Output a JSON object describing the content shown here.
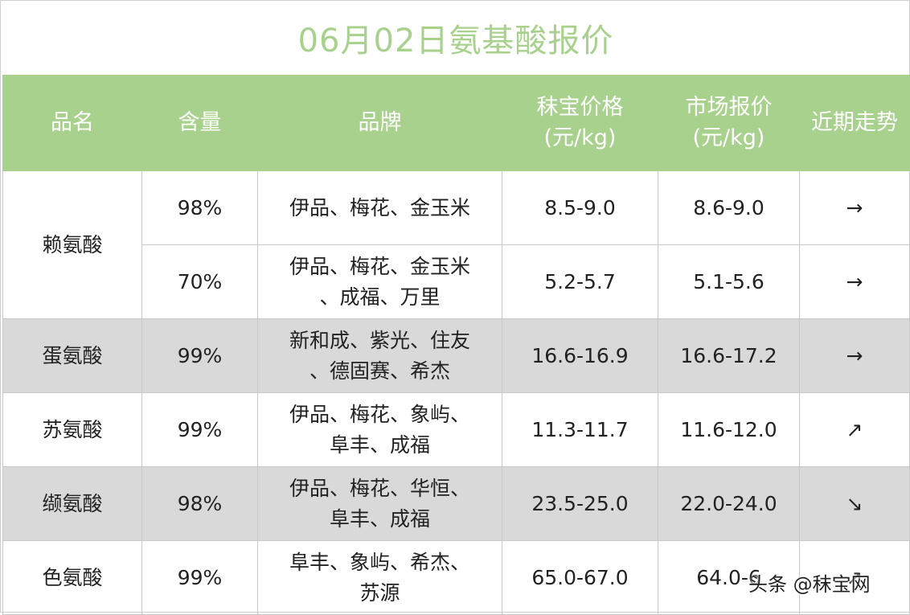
{
  "title": "06月02日氨基酸报价",
  "headers": {
    "name": "品名",
    "content": "含量",
    "brand": "品牌",
    "price_line1": "秣宝价格",
    "price_line2": "(元/kg)",
    "market_line1": "市场报价",
    "market_line2": "(元/kg)",
    "trend": "近期走势"
  },
  "rows": [
    {
      "name": "赖氨酸",
      "content": "98%",
      "brand_l1": "伊品、梅花、金玉米",
      "brand_l2": "",
      "price": "8.5-9.0",
      "market": "8.6-9.0",
      "trend": "→"
    },
    {
      "name": "",
      "content": "70%",
      "brand_l1": "伊品、梅花、金玉米",
      "brand_l2": "、成福、万里",
      "price": "5.2-5.7",
      "market": "5.1-5.6",
      "trend": "→"
    },
    {
      "name": "蛋氨酸",
      "content": "99%",
      "brand_l1": "新和成、紫光、住友",
      "brand_l2": "、德固赛、希杰",
      "price": "16.6-16.9",
      "market": "16.6-17.2",
      "trend": "→"
    },
    {
      "name": "苏氨酸",
      "content": "99%",
      "brand_l1": "伊品、梅花、象屿、",
      "brand_l2": "阜丰、成福",
      "price": "11.3-11.7",
      "market": "11.6-12.0",
      "trend": "↗"
    },
    {
      "name": "缬氨酸",
      "content": "98%",
      "brand_l1": "伊品、梅花、华恒、",
      "brand_l2": "阜丰、成福",
      "price": "23.5-25.0",
      "market": "22.0-24.0",
      "trend": "↘"
    },
    {
      "name": "色氨酸",
      "content": "99%",
      "brand_l1": "阜丰、象屿、希杰、",
      "brand_l2": "苏源",
      "price": "65.0-67.0",
      "market": "64.0-6",
      "trend": "↗"
    }
  ],
  "watermark": "头条 @秣宝网",
  "colors": {
    "header_bg": "#a9d18e",
    "title": "#a9d18e",
    "shade": "#d9d9d9"
  }
}
